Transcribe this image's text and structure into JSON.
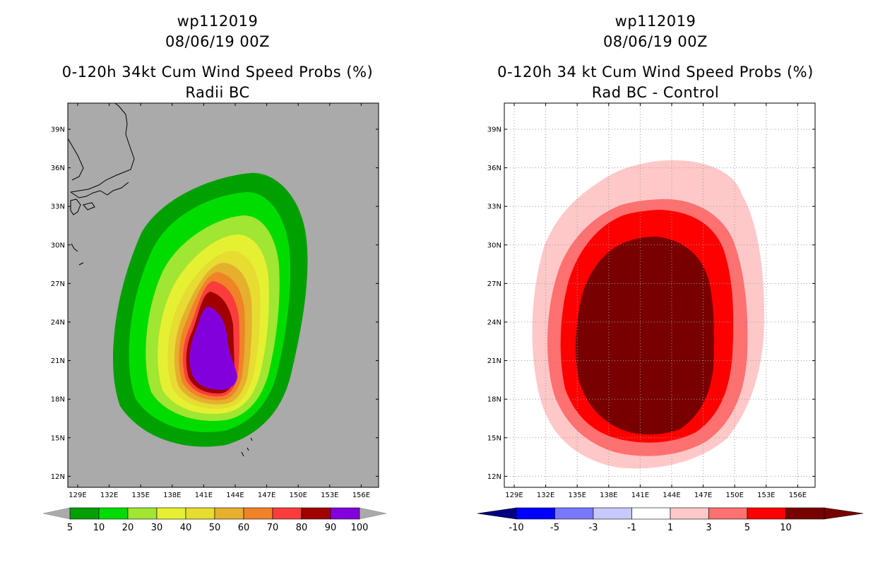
{
  "left": {
    "storm": "wp112019",
    "date": "08/06/19 00Z",
    "title": "0-120h 34kt Cum Wind Speed Probs (%)",
    "subtitle": "Radii BC",
    "background": "#aaaaaa",
    "colorbar": {
      "colors": [
        "#00a000",
        "#00dc00",
        "#a0e632",
        "#e6f032",
        "#e6dc32",
        "#e6af2d",
        "#f08228",
        "#fa3c3c",
        "#a00000",
        "#8200dc"
      ],
      "labels": [
        "5",
        "10",
        "20",
        "30",
        "40",
        "50",
        "60",
        "70",
        "80",
        "90",
        "100"
      ]
    }
  },
  "right": {
    "storm": "wp112019",
    "date": "08/06/19 00Z",
    "title": "0-120h 34 kt Cum Wind Speed Probs (%)",
    "subtitle": "Rad BC - Control",
    "background": "#ffffff",
    "colorbar": {
      "colors": [
        "#0000ff",
        "#7878ff",
        "#c8c8ff",
        "#ffffff",
        "#ffc8c8",
        "#ff7070",
        "#ff0000",
        "#780000"
      ],
      "labels": [
        "-10",
        "-5",
        "-3",
        "-1",
        "1",
        "3",
        "5",
        "10"
      ]
    }
  },
  "lat_labels": [
    "39N",
    "36N",
    "33N",
    "30N",
    "27N",
    "24N",
    "21N",
    "18N",
    "15N",
    "12N"
  ],
  "lon_labels": [
    "129E",
    "132E",
    "135E",
    "138E",
    "141E",
    "144E",
    "147E",
    "150E",
    "153E",
    "156E"
  ]
}
